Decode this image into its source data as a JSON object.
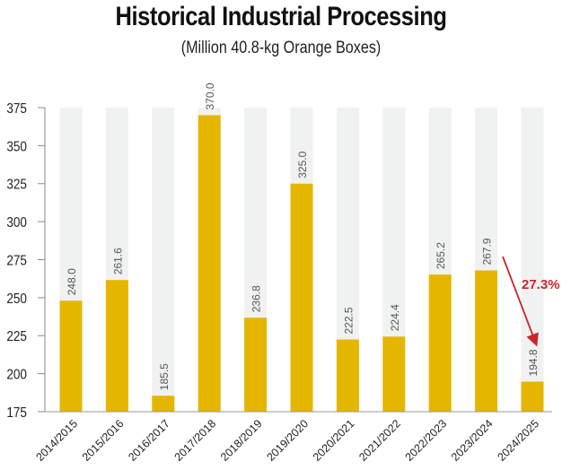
{
  "chart_data": {
    "type": "bar",
    "title": "Historical Industrial Processing",
    "subtitle": "(Million 40.8-kg Orange Boxes)",
    "xlabel": "",
    "ylabel": "",
    "ylim": [
      175,
      375
    ],
    "yticks": [
      "175",
      "200",
      "225",
      "250",
      "275",
      "300",
      "325",
      "350",
      "375"
    ],
    "ytick_values": [
      175,
      200,
      225,
      250,
      275,
      300,
      325,
      350,
      375
    ],
    "categories": [
      "2014/2015",
      "2015/2016",
      "2016/2017",
      "2017/2018",
      "2018/2019",
      "2019/2020",
      "2020/2021",
      "2021/2022",
      "2022/2023",
      "2023/2024",
      "2024/2025"
    ],
    "values": [
      248.0,
      261.6,
      185.5,
      370.0,
      236.8,
      325.0,
      222.5,
      224.4,
      265.2,
      267.9,
      194.8
    ],
    "labels": [
      "248.0",
      "261.6",
      "185.5",
      "370.0",
      "236.8",
      "325.0",
      "222.5",
      "224.4",
      "265.2",
      "267.9",
      "194.8"
    ],
    "annotation": {
      "text": "27.3%",
      "from": "2023/2024",
      "to": "2024/2025",
      "direction": "decrease"
    },
    "colors": {
      "bar": "#E5B600",
      "background_bar": "#F0F1F1",
      "annotation": "#C8262C",
      "label": "#555555"
    },
    "grid": false
  }
}
